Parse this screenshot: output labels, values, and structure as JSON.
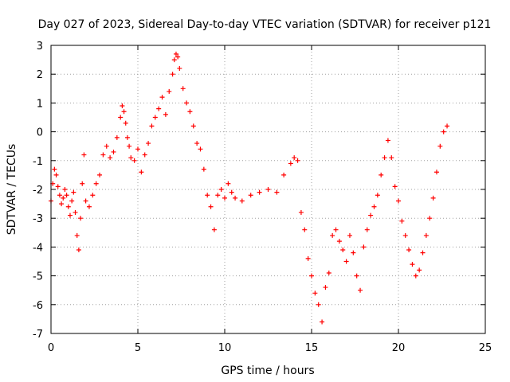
{
  "chart_data": {
    "type": "scatter",
    "title": "Day 027 of 2023, Sidereal Day-to-day VTEC variation (SDTVAR) for receiver p121",
    "xlabel": "GPS time / hours",
    "ylabel": "SDTVAR / TECUs",
    "xlim": [
      0,
      25
    ],
    "ylim": [
      -7,
      3
    ],
    "xticks": [
      0,
      5,
      10,
      15,
      20,
      25
    ],
    "yticks": [
      -7,
      -6,
      -5,
      -4,
      -3,
      -2,
      -1,
      0,
      1,
      2,
      3
    ],
    "grid": true,
    "marker": "+",
    "series": [
      {
        "name": "p121",
        "color": "#ff0000",
        "x": [
          0.0,
          0.1,
          0.2,
          0.3,
          0.4,
          0.5,
          0.6,
          0.7,
          0.8,
          0.9,
          1.0,
          1.1,
          1.2,
          1.3,
          1.4,
          1.5,
          1.6,
          1.7,
          1.8,
          1.9,
          2.0,
          2.2,
          2.4,
          2.6,
          2.8,
          3.0,
          3.2,
          3.4,
          3.6,
          3.8,
          4.0,
          4.1,
          4.2,
          4.3,
          4.4,
          4.5,
          4.6,
          4.8,
          5.0,
          5.2,
          5.4,
          5.6,
          5.8,
          6.0,
          6.2,
          6.4,
          6.6,
          6.8,
          7.0,
          7.1,
          7.2,
          7.3,
          7.4,
          7.6,
          7.8,
          8.0,
          8.2,
          8.4,
          8.6,
          8.8,
          9.0,
          9.2,
          9.4,
          9.6,
          9.8,
          10.0,
          10.2,
          10.4,
          10.6,
          11.0,
          11.5,
          12.0,
          12.5,
          13.0,
          13.4,
          13.8,
          14.0,
          14.2,
          14.4,
          14.6,
          14.8,
          15.0,
          15.2,
          15.4,
          15.6,
          15.8,
          16.0,
          16.2,
          16.4,
          16.6,
          16.8,
          17.0,
          17.2,
          17.4,
          17.6,
          17.8,
          18.0,
          18.2,
          18.4,
          18.6,
          18.8,
          19.0,
          19.2,
          19.4,
          19.6,
          19.8,
          20.0,
          20.2,
          20.4,
          20.6,
          20.8,
          21.0,
          21.2,
          21.4,
          21.6,
          21.8,
          22.0,
          22.2,
          22.4,
          22.6,
          22.8
        ],
        "y": [
          -2.4,
          -1.8,
          -1.3,
          -1.5,
          -1.9,
          -2.2,
          -2.5,
          -2.3,
          -2.0,
          -2.2,
          -2.6,
          -2.9,
          -2.4,
          -2.1,
          -2.8,
          -3.6,
          -4.1,
          -3.0,
          -1.8,
          -0.8,
          -2.4,
          -2.6,
          -2.2,
          -1.8,
          -1.5,
          -0.8,
          -0.5,
          -0.9,
          -0.7,
          -0.2,
          0.5,
          0.9,
          0.7,
          0.3,
          -0.2,
          -0.5,
          -0.9,
          -1.0,
          -0.6,
          -1.4,
          -0.8,
          -0.4,
          0.2,
          0.5,
          0.8,
          1.2,
          0.6,
          1.4,
          2.0,
          2.5,
          2.7,
          2.6,
          2.2,
          1.5,
          1.0,
          0.7,
          0.2,
          -0.4,
          -0.6,
          -1.3,
          -2.2,
          -2.6,
          -3.4,
          -2.2,
          -2.0,
          -2.3,
          -1.8,
          -2.1,
          -2.3,
          -2.4,
          -2.2,
          -2.1,
          -2.0,
          -2.1,
          -1.5,
          -1.1,
          -0.9,
          -1.0,
          -2.8,
          -3.4,
          -4.4,
          -5.0,
          -5.6,
          -6.0,
          -6.6,
          -5.4,
          -4.9,
          -3.6,
          -3.4,
          -3.8,
          -4.1,
          -4.5,
          -3.6,
          -4.2,
          -5.0,
          -5.5,
          -4.0,
          -3.4,
          -2.9,
          -2.6,
          -2.2,
          -1.5,
          -0.9,
          -0.3,
          -0.9,
          -1.9,
          -2.4,
          -3.1,
          -3.6,
          -4.1,
          -4.6,
          -5.0,
          -4.8,
          -4.2,
          -3.6,
          -3.0,
          -2.3,
          -1.4,
          -0.5,
          0.0,
          0.2
        ]
      }
    ]
  }
}
